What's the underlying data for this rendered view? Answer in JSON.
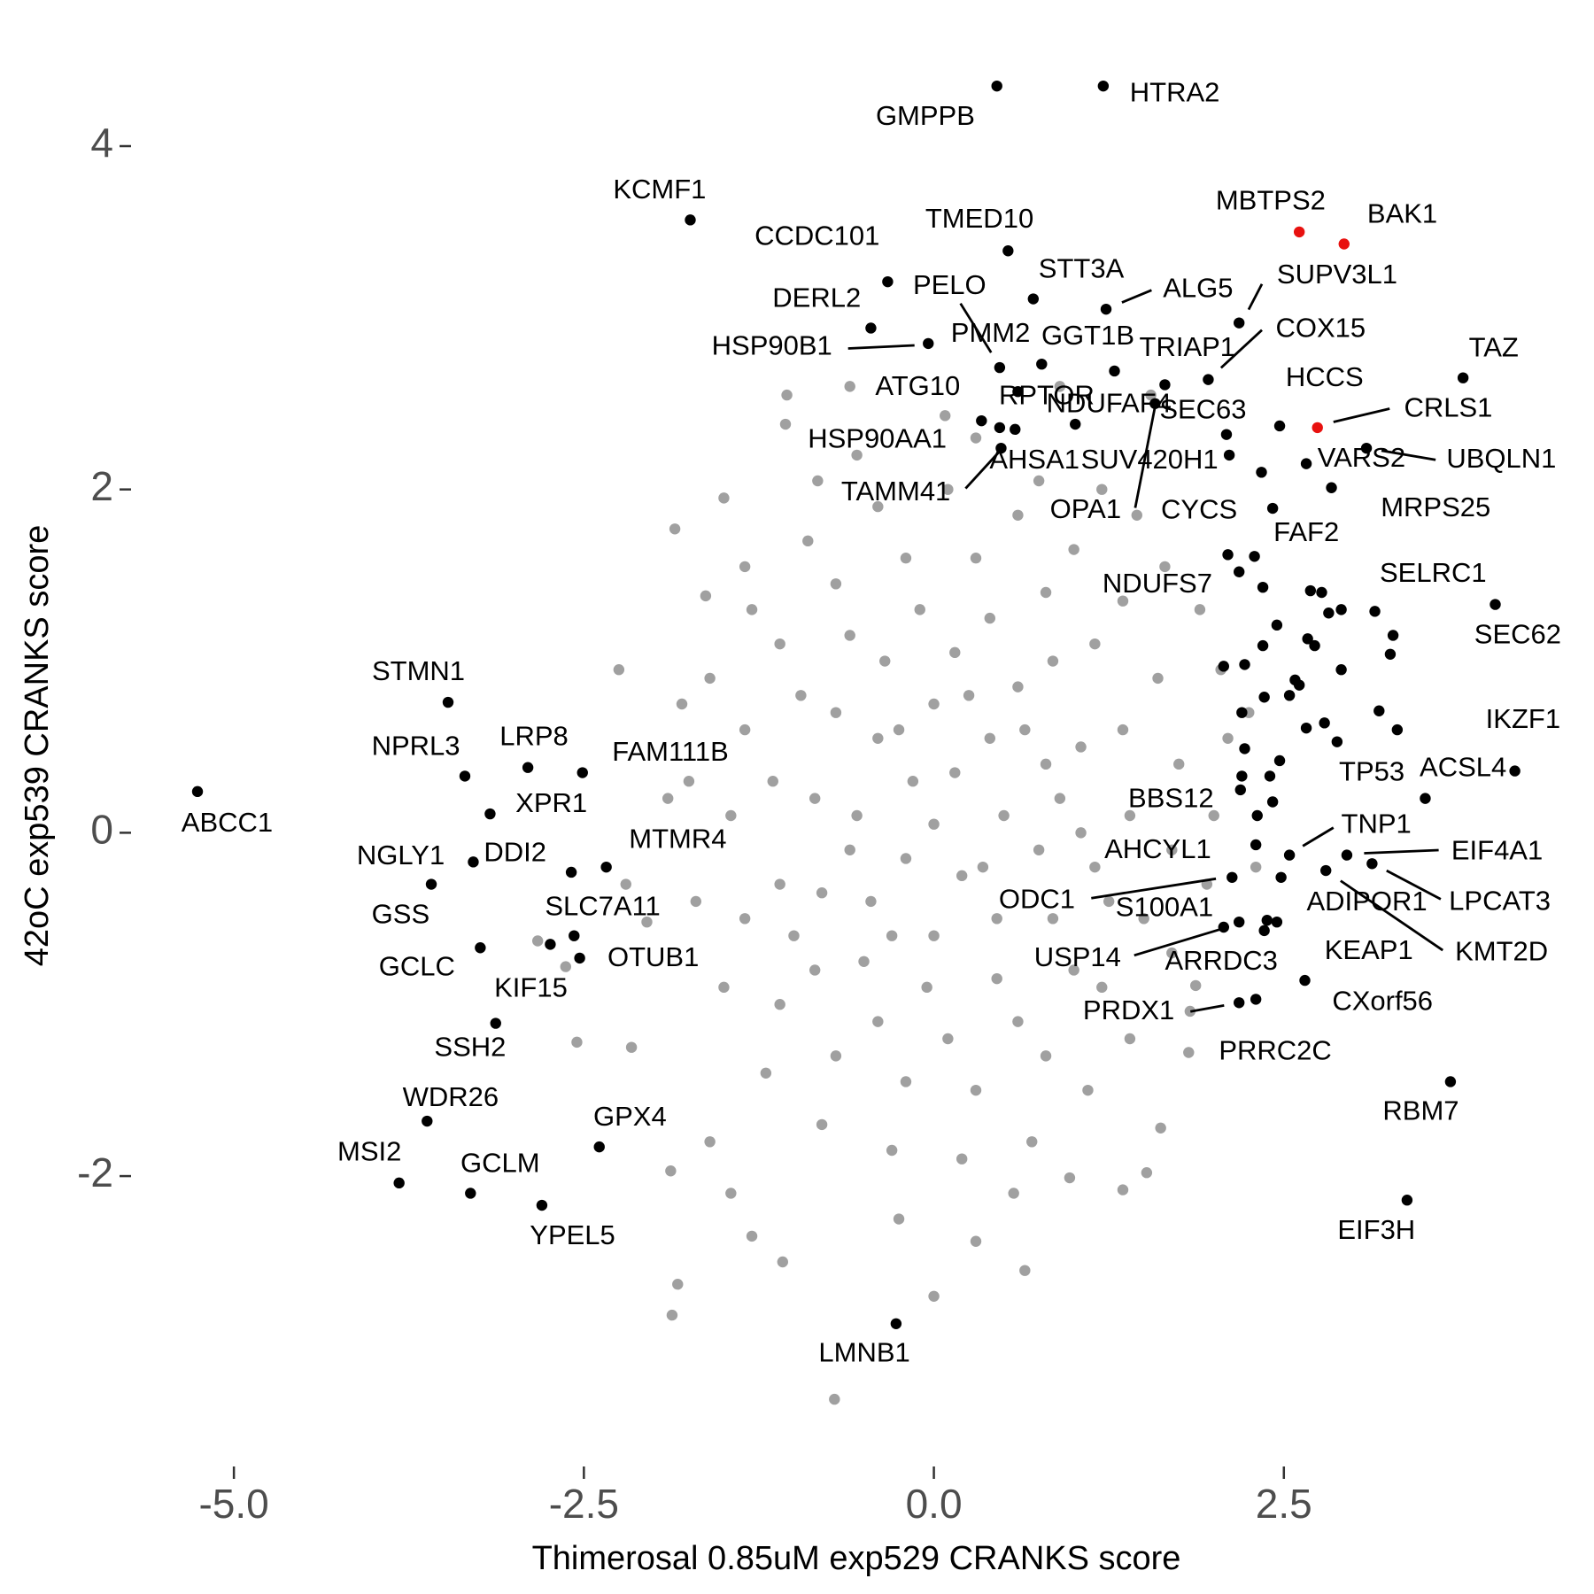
{
  "chart_data": {
    "type": "scatter",
    "xlabel": "Thimerosal 0.85uM exp529 CRANKS score",
    "ylabel": "42oC exp539 CRANKS score",
    "xlim": [
      -5.7,
      4.5
    ],
    "ylim": [
      -3.5,
      4.5
    ],
    "xticks": [
      {
        "value": -5,
        "label": "-5.0"
      },
      -2.5,
      {
        "value": 0,
        "label": "0.0"
      },
      2.5
    ],
    "yticks": [
      -2,
      0,
      2,
      4
    ],
    "grid": false,
    "series": [
      {
        "color": "#a0a0a0",
        "x": [
          -0.71,
          -1.87,
          -1.83,
          -1.08,
          -1.88,
          -1.45,
          -1.3,
          -0.25,
          0.3,
          0.57,
          0.97,
          1.52,
          1.62,
          1.82,
          1.83,
          1.87,
          -2.55,
          -2.63,
          -2.83,
          -2.16,
          -2.05,
          -1.9,
          -1.8,
          -1.63,
          -1.85,
          -1.5,
          -1.35,
          -1.06,
          -0.83,
          -0.55,
          0.08,
          0.3,
          0.75,
          1.2,
          1.45,
          1.65,
          1.9,
          2.05,
          2.1,
          2.0,
          1.95,
          1.7,
          1.4,
          1.1,
          0.7,
          0.2,
          -0.3,
          -0.8,
          -1.2,
          -1.5,
          -1.7,
          -1.75,
          -1.6,
          -1.3,
          -0.9,
          -0.4,
          0.1,
          0.6,
          1.0,
          1.35,
          1.6,
          1.75,
          1.7,
          1.5,
          1.2,
          0.8,
          0.3,
          -0.2,
          -0.7,
          -1.1,
          -1.35,
          -1.45,
          -1.35,
          -1.1,
          -0.7,
          -0.2,
          0.3,
          0.8,
          1.15,
          1.35,
          1.4,
          1.25,
          1.0,
          0.6,
          0.1,
          -0.4,
          -0.85,
          -1.1,
          -1.15,
          -0.95,
          -0.6,
          -0.1,
          0.4,
          0.85,
          1.05,
          1.05,
          0.85,
          0.45,
          -0.05,
          -0.5,
          -0.8,
          -0.85,
          -0.7,
          -0.35,
          0.15,
          0.6,
          0.8,
          0.75,
          0.45,
          0.0,
          -0.45,
          -0.55,
          -0.4,
          0.0,
          0.4,
          0.5,
          0.2,
          -0.2,
          -0.15,
          0.15,
          0.0,
          -0.25,
          0.25,
          0.65,
          0.35,
          -0.6,
          -0.3,
          0.9,
          -1.0,
          1.15,
          -2.25,
          -2.2,
          2.25,
          2.3,
          -1.6,
          0.0,
          0.65,
          1.35,
          -0.6,
          0.9,
          -1.05,
          1.55
        ],
        "y": [
          -3.3,
          -2.81,
          -2.63,
          -2.5,
          -1.97,
          -2.1,
          -2.35,
          -2.25,
          -2.38,
          -2.1,
          -2.01,
          -1.98,
          -1.72,
          -1.28,
          -1.04,
          -0.89,
          -1.22,
          -0.78,
          -0.63,
          -1.25,
          -0.52,
          0.2,
          0.75,
          1.38,
          1.77,
          1.95,
          1.55,
          2.38,
          2.05,
          2.2,
          2.43,
          2.3,
          2.05,
          2.0,
          1.85,
          1.55,
          1.3,
          0.95,
          0.55,
          0.1,
          -0.3,
          -0.7,
          -1.2,
          -1.5,
          -1.8,
          -1.9,
          -1.85,
          -1.7,
          -1.4,
          -0.9,
          -0.4,
          0.3,
          0.9,
          1.3,
          1.7,
          1.9,
          2.0,
          1.85,
          1.65,
          1.35,
          0.9,
          0.4,
          -0.1,
          -0.5,
          -0.9,
          -1.3,
          -1.5,
          -1.45,
          -1.3,
          -1.0,
          -0.5,
          0.1,
          0.6,
          1.1,
          1.45,
          1.6,
          1.6,
          1.4,
          1.1,
          0.6,
          0.1,
          -0.4,
          -0.8,
          -1.1,
          -1.2,
          -1.1,
          -0.8,
          -0.3,
          0.3,
          0.8,
          1.15,
          1.3,
          1.25,
          1.0,
          0.5,
          0.0,
          -0.5,
          -0.85,
          -0.9,
          -0.75,
          -0.35,
          0.2,
          0.7,
          1.0,
          1.05,
          0.85,
          0.4,
          -0.1,
          -0.5,
          -0.6,
          -0.4,
          0.1,
          0.55,
          0.75,
          0.55,
          0.1,
          -0.25,
          -0.15,
          0.3,
          0.35,
          0.05,
          0.6,
          0.8,
          0.6,
          -0.2,
          -0.1,
          -0.6,
          0.2,
          -0.6,
          -0.2,
          0.95,
          -0.3,
          0.7,
          -0.2,
          -1.8,
          -2.7,
          -2.55,
          -2.08,
          2.6,
          2.6,
          2.55,
          2.55
        ]
      },
      {
        "color": "#000000",
        "x": [
          2.18,
          2.29,
          2.35,
          2.22,
          2.35,
          2.45,
          2.54,
          2.58,
          2.66,
          2.67,
          2.77,
          2.82,
          2.91,
          2.79,
          3.18,
          3.31,
          3.28,
          3.26,
          2.2,
          2.22,
          2.42,
          2.4,
          2.47,
          2.2,
          2.31,
          2.07,
          2.69,
          2.91,
          2.72,
          2.61,
          2.36,
          2.38
        ],
        "y": [
          1.52,
          1.61,
          1.43,
          0.98,
          1.09,
          1.21,
          0.8,
          0.89,
          0.61,
          1.13,
          1.4,
          1.28,
          0.95,
          0.64,
          0.71,
          0.6,
          1.15,
          1.04,
          0.7,
          0.49,
          0.18,
          0.33,
          0.42,
          0.33,
          0.1,
          0.97,
          1.41,
          1.3,
          1.09,
          0.86,
          0.79,
          -0.51
        ]
      },
      {
        "color": "#000000",
        "x": [
          0.45,
          1.21,
          -1.74,
          0.53,
          -0.33,
          0.71,
          1.23,
          2.18,
          -0.45,
          0.47,
          -0.04,
          0.77,
          1.29,
          1.65,
          1.96,
          3.78,
          0.6,
          0.47,
          1.01,
          2.09,
          2.47,
          0.34,
          0.58,
          0.48,
          2.11,
          1.58,
          2.66,
          3.09,
          2.34,
          2.84,
          2.42,
          2.1,
          3.15,
          4.01,
          4.15,
          3.51,
          2.88,
          2.19,
          2.54,
          2.95,
          2.3,
          3.13,
          2.13,
          2.48,
          2.8,
          2.18,
          2.07,
          2.36,
          2.45,
          2.65,
          2.18,
          2.3,
          3.69,
          3.38,
          -0.27,
          -3.47,
          -3.35,
          -2.9,
          -2.51,
          -3.17,
          -5.26,
          -3.29,
          -2.59,
          -2.34,
          -3.59,
          -2.57,
          -3.24,
          -2.53,
          -2.74,
          -3.13,
          -3.62,
          -2.39,
          -3.82,
          -3.31,
          -2.8
        ],
        "y": [
          4.35,
          4.35,
          3.57,
          3.39,
          3.21,
          3.11,
          3.05,
          2.97,
          2.94,
          2.71,
          2.85,
          2.73,
          2.69,
          2.61,
          2.64,
          2.65,
          2.57,
          2.36,
          2.38,
          2.32,
          2.37,
          2.4,
          2.35,
          2.24,
          2.2,
          2.5,
          2.15,
          2.24,
          2.1,
          2.01,
          1.89,
          1.62,
          1.29,
          1.33,
          0.36,
          0.2,
          0.53,
          0.25,
          -0.13,
          -0.13,
          -0.07,
          -0.18,
          -0.26,
          -0.26,
          -0.22,
          -0.52,
          -0.55,
          -0.57,
          -0.52,
          -0.86,
          -0.99,
          -0.97,
          -1.45,
          -2.14,
          -2.86,
          0.76,
          0.33,
          0.38,
          0.35,
          0.11,
          0.24,
          -0.17,
          -0.23,
          -0.2,
          -0.3,
          -0.6,
          -0.67,
          -0.73,
          -0.65,
          -1.11,
          -1.68,
          -1.83,
          -2.04,
          -2.1,
          -2.17
        ],
        "labels": [
          "GMPPB",
          "HTRA2",
          "KCMF1",
          "TMED10",
          "CCDC101",
          "STT3A",
          "ALG5",
          "SUPV3L1",
          "DERL2",
          "PELO",
          "HSP90B1",
          "PMM2",
          "GGT1B",
          "TRIAP1",
          "COX15",
          "TAZ",
          "ATG10",
          "RPTOR",
          "NDUFAF4",
          "SEC63",
          "HCCS",
          "HSP90AA1",
          "AHSA1",
          "TAMM41",
          "SUV420H1",
          "OPA1",
          "VARS2",
          "UBQLN1",
          "CYCS",
          "MRPS25",
          "FAF2",
          "NDUFS7",
          "SELRC1",
          "SEC62",
          "IKZF1",
          "ACSL4",
          "TP53",
          "BBS12",
          "TNP1",
          "EIF4A1",
          "AHCYL1",
          "LPCAT3",
          "ODC1",
          "ADIPOR1",
          "KMT2D",
          "S100A1",
          "USP14",
          "ARRDC3",
          "KEAP1",
          "CXorf56",
          "PRDX1",
          "PRRC2C",
          "RBM7",
          "EIF3H",
          "LMNB1",
          "STMN1",
          "NPRL3",
          "LRP8",
          "FAM111B",
          "XPR1",
          "ABCC1",
          "NGLY1",
          "DDI2",
          "MTMR4",
          "GSS",
          "SLC7A11",
          "GCLC",
          "OTUB1",
          "KIF15",
          "SSH2",
          "WDR26",
          "GPX4",
          "MSI2",
          "GCLM",
          "YPEL5"
        ]
      },
      {
        "color": "#e8110f",
        "x": [
          2.61,
          2.93,
          2.74
        ],
        "y": [
          3.5,
          3.43,
          2.36
        ],
        "labels": [
          "MBTPS2",
          "BAK1",
          "CRLS1"
        ]
      }
    ]
  }
}
